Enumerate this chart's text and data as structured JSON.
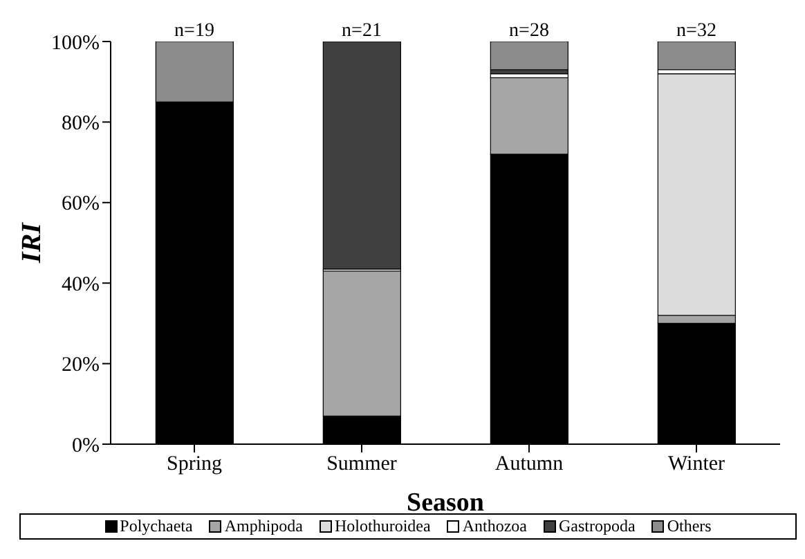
{
  "chart_data": {
    "type": "bar",
    "stacked": true,
    "xlabel": "Season",
    "ylabel": "IRI",
    "categories": [
      "Spring",
      "Summer",
      "Autumn",
      "Winter"
    ],
    "series": [
      {
        "name": "Polychaeta",
        "color": "#000000",
        "values": [
          85,
          7,
          72,
          30
        ]
      },
      {
        "name": "Amphipoda",
        "color": "#a6a6a6",
        "values": [
          0,
          36,
          19,
          2
        ]
      },
      {
        "name": "Holothuroidea",
        "color": "#dcdcdc",
        "values": [
          0,
          0,
          0,
          60
        ]
      },
      {
        "name": "Anthozoa",
        "color": "#ffffff",
        "values": [
          0,
          0.5,
          1,
          1
        ]
      },
      {
        "name": "Gastropoda",
        "color": "#404040",
        "values": [
          0,
          56.5,
          1,
          0
        ]
      },
      {
        "name": "Others",
        "color": "#8c8c8c",
        "values": [
          15,
          0,
          7,
          7
        ]
      }
    ],
    "ylim": [
      0,
      100
    ],
    "yticks": [
      {
        "value": 0,
        "label": "0%"
      },
      {
        "value": 20,
        "label": "20%"
      },
      {
        "value": 40,
        "label": "40%"
      },
      {
        "value": 60,
        "label": "60%"
      },
      {
        "value": 80,
        "label": "80%"
      },
      {
        "value": 100,
        "label": "100%"
      }
    ],
    "annotations": [
      {
        "text": "n=19",
        "x": "Spring",
        "y": 100
      },
      {
        "text": "n=21",
        "x": "Summer",
        "y": 100
      },
      {
        "text": "n=28",
        "x": "Autumn",
        "y": 100
      },
      {
        "text": "n=32",
        "x": "Winter",
        "y": 100
      }
    ],
    "grid": false,
    "legend": "bottom"
  }
}
